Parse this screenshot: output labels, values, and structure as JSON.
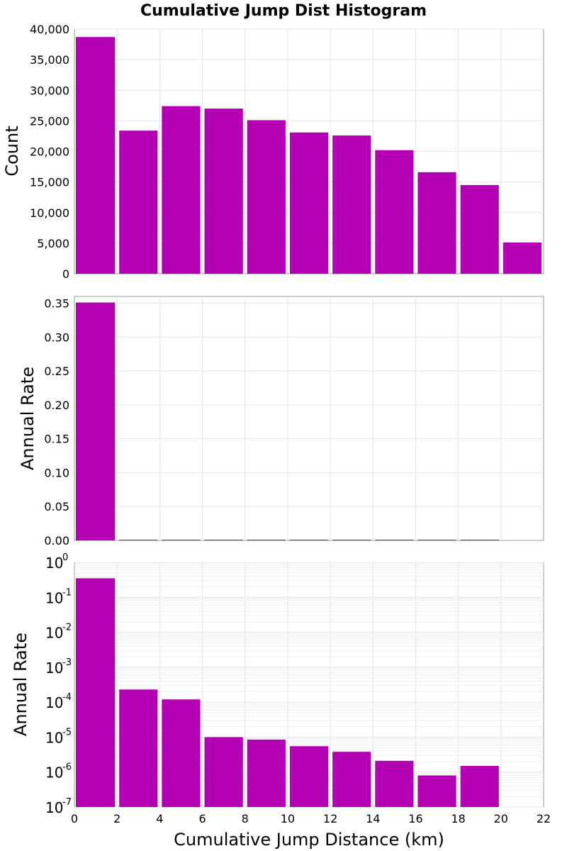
{
  "title": "Cumulative Jump Dist Histogram",
  "colors": {
    "bar": "#b200b2"
  },
  "chart_data": [
    {
      "type": "bar",
      "ylabel": "Count",
      "ylim": [
        0,
        40000
      ],
      "yticks": [
        0,
        5000,
        10000,
        15000,
        20000,
        25000,
        30000,
        35000,
        40000
      ],
      "ytick_labels": [
        "0",
        "5,000",
        "10,000",
        "15,000",
        "20,000",
        "25,000",
        "30,000",
        "35,000",
        "40,000"
      ],
      "xlim": [
        0,
        22
      ],
      "bin_width": 2,
      "x": [
        1,
        3,
        5,
        7,
        9,
        11,
        13,
        15,
        17,
        19,
        21
      ],
      "values": [
        38700,
        23400,
        27400,
        27000,
        25100,
        23100,
        22600,
        20200,
        16600,
        14500,
        5100
      ],
      "grid": true
    },
    {
      "type": "bar",
      "ylabel": "Annual Rate",
      "ylim": [
        0,
        0.36
      ],
      "yticks": [
        0,
        0.05,
        0.1,
        0.15,
        0.2,
        0.25,
        0.3,
        0.35
      ],
      "ytick_labels": [
        "0.00",
        "0.05",
        "0.10",
        "0.15",
        "0.20",
        "0.25",
        "0.30",
        "0.35"
      ],
      "xlim": [
        0,
        22
      ],
      "bin_width": 2,
      "x": [
        1,
        3,
        5,
        7,
        9,
        11,
        13,
        15,
        17,
        19,
        21
      ],
      "values": [
        0.351,
        0.00023,
        0.00012,
        1e-05,
        8.5e-06,
        5.5e-06,
        3.8e-06,
        2.1e-06,
        8e-07,
        1.5e-06,
        0
      ],
      "grid": true
    },
    {
      "type": "bar",
      "ylabel": "Annual Rate",
      "y_scale": "log",
      "ylim": [
        1e-07,
        1
      ],
      "ytick_exponents": [
        -7,
        -6,
        -5,
        -4,
        -3,
        -2,
        -1,
        0
      ],
      "ytick_base": "10",
      "xlim": [
        0,
        22
      ],
      "xticks": [
        0,
        2,
        4,
        6,
        8,
        10,
        12,
        14,
        16,
        18,
        20,
        22
      ],
      "xtick_labels": [
        "0",
        "2",
        "4",
        "6",
        "8",
        "10",
        "12",
        "14",
        "16",
        "18",
        "20",
        "22"
      ],
      "xlabel": "Cumulative Jump Distance (km)",
      "bin_width": 2,
      "x": [
        1,
        3,
        5,
        7,
        9,
        11,
        13,
        15,
        17,
        19,
        21
      ],
      "values": [
        0.351,
        0.00023,
        0.00012,
        1e-05,
        8.5e-06,
        5.5e-06,
        3.8e-06,
        2.1e-06,
        8e-07,
        1.5e-06,
        0
      ],
      "grid": true
    }
  ]
}
